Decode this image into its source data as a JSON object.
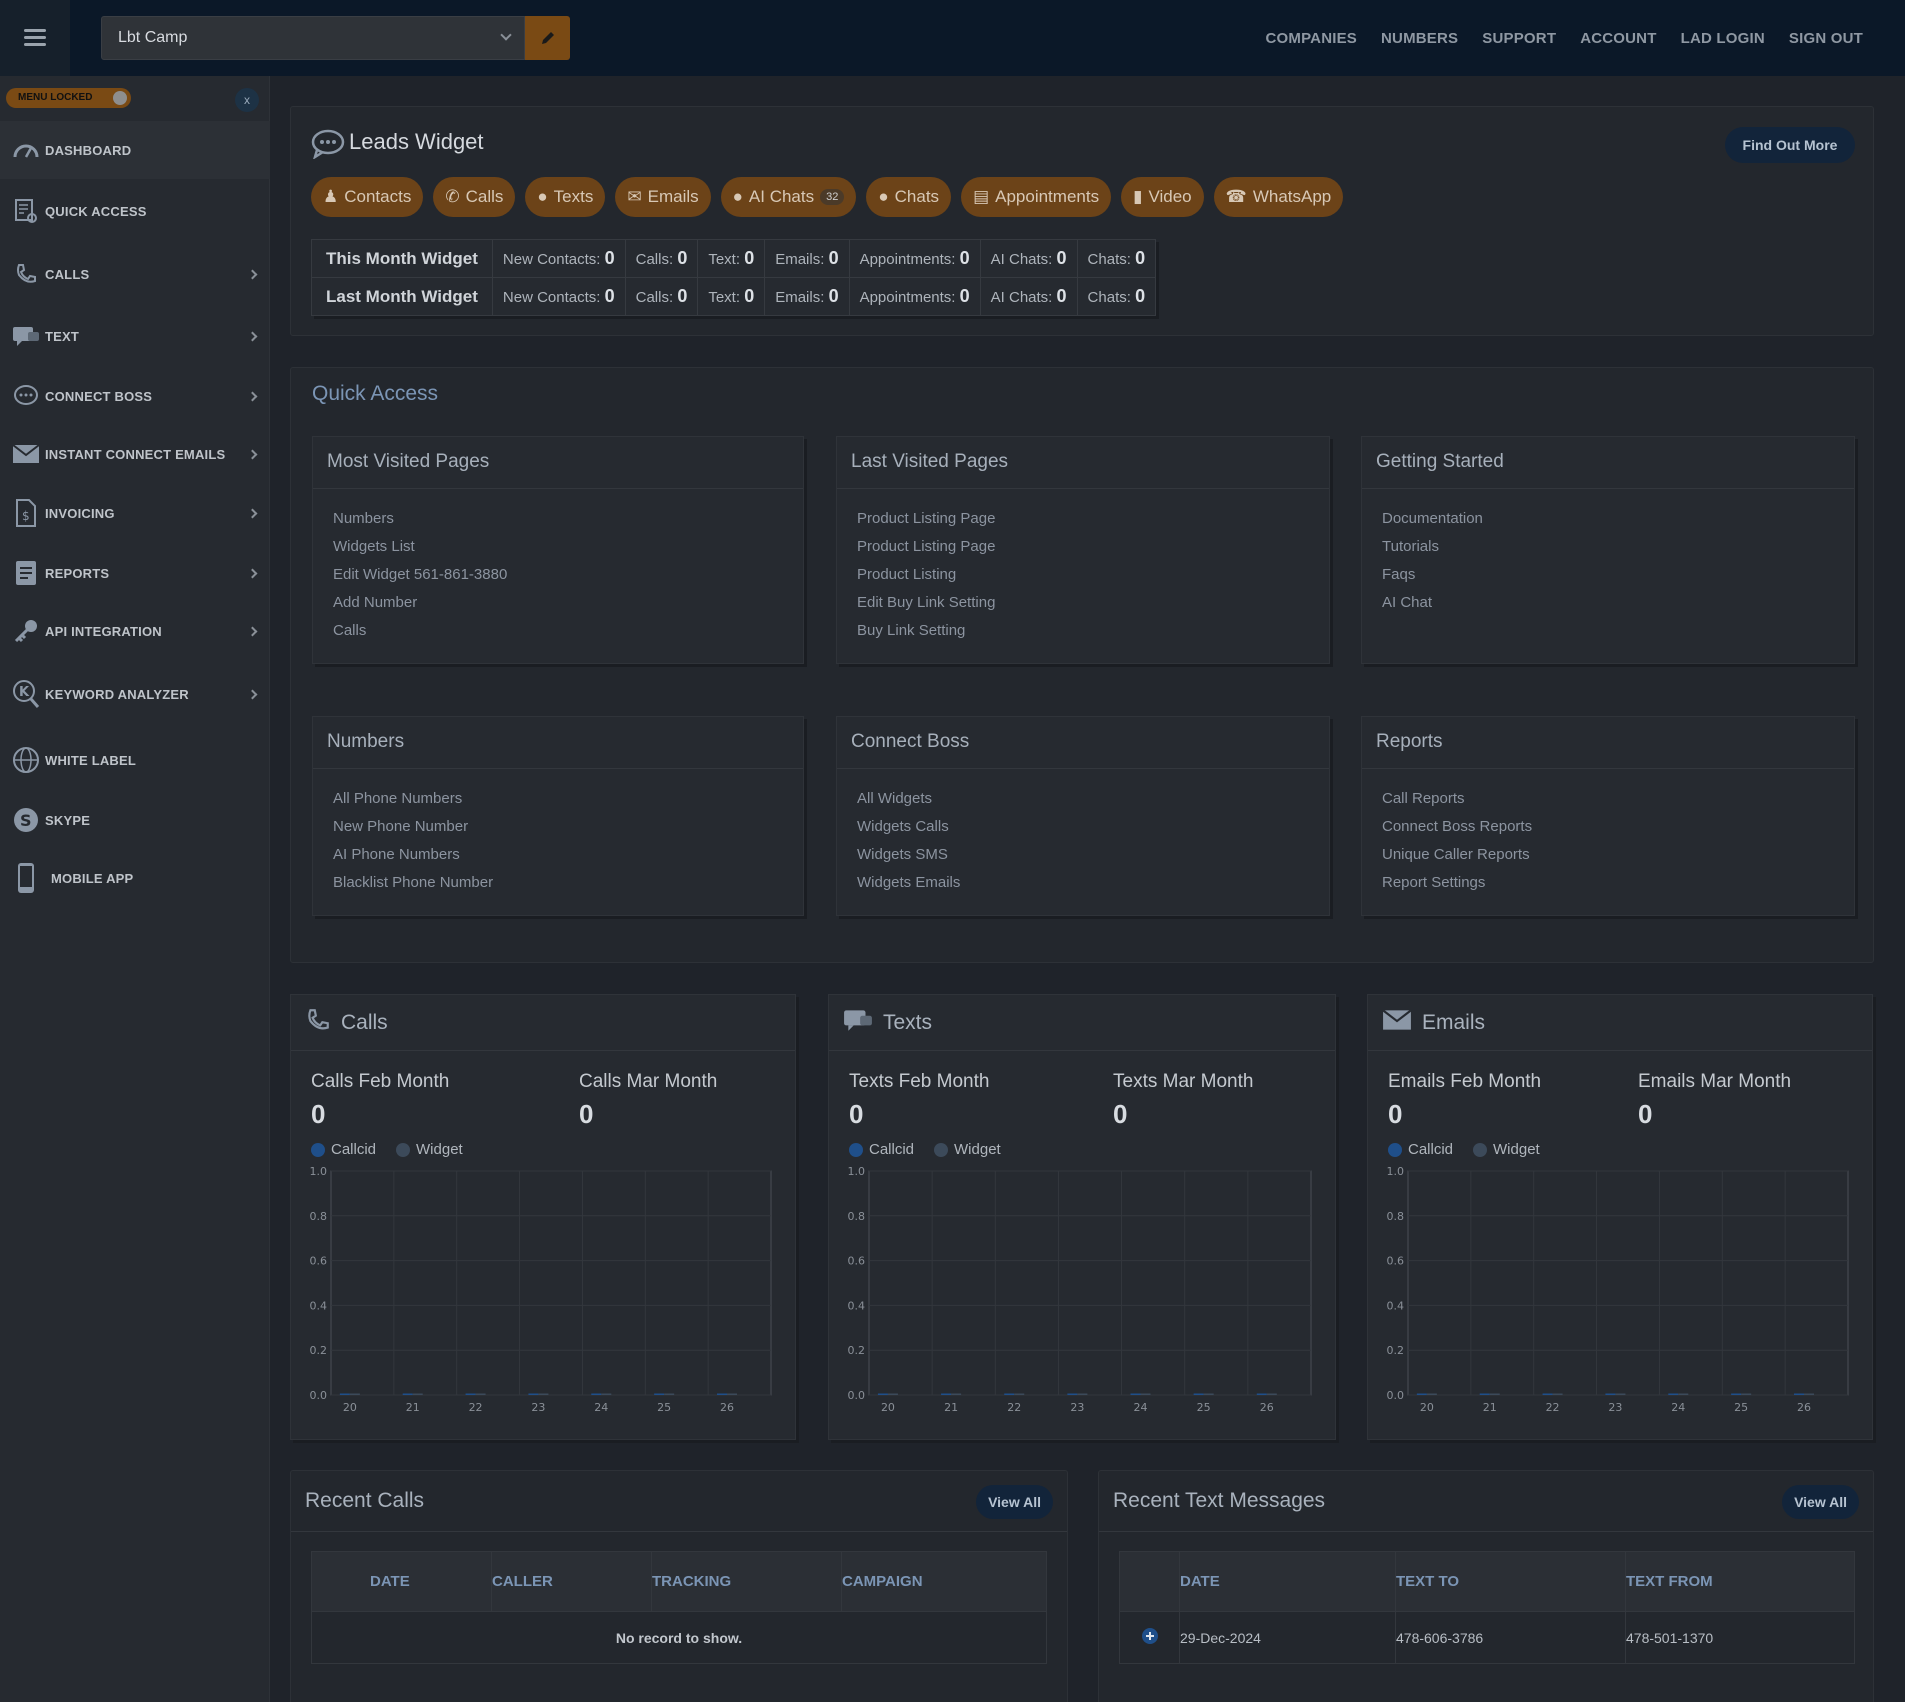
{
  "header": {
    "campaign": "Lbt Camp",
    "nav": [
      "COMPANIES",
      "NUMBERS",
      "SUPPORT",
      "ACCOUNT",
      "LAD LOGIN",
      "SIGN OUT"
    ]
  },
  "sidebar": {
    "menu_locked": "MENU LOCKED",
    "close": "x",
    "items": [
      {
        "label": "DASHBOARD",
        "icon": "dashboard-icon"
      },
      {
        "label": "QUICK ACCESS",
        "icon": "quick-access-icon"
      },
      {
        "label": "CALLS",
        "icon": "phone-icon"
      },
      {
        "label": "TEXT",
        "icon": "chat-icon"
      },
      {
        "label": "CONNECT BOSS",
        "icon": "speech-bubble-icon"
      },
      {
        "label": "INSTANT CONNECT EMAILS",
        "icon": "envelope-icon"
      },
      {
        "label": "INVOICING",
        "icon": "invoice-icon"
      },
      {
        "label": "REPORTS",
        "icon": "report-icon"
      },
      {
        "label": "API INTEGRATION",
        "icon": "key-icon"
      },
      {
        "label": "KEYWORD ANALYZER",
        "icon": "keyword-search-icon"
      },
      {
        "label": "WHITE LABEL",
        "icon": "globe-icon"
      },
      {
        "label": "SKYPE",
        "icon": "skype-icon"
      },
      {
        "label": "MOBILE APP",
        "icon": "mobile-icon"
      }
    ]
  },
  "leads": {
    "title": "Leads Widget",
    "find_out_more": "Find Out More",
    "pills": [
      {
        "label": "Contacts",
        "icon": "user-icon"
      },
      {
        "label": "Calls",
        "icon": "phone-icon"
      },
      {
        "label": "Texts",
        "icon": "comment-icon"
      },
      {
        "label": "Emails",
        "icon": "envelope-icon"
      },
      {
        "label": "AI Chats",
        "icon": "comment-icon",
        "badge": "32"
      },
      {
        "label": "Chats",
        "icon": "comment-icon"
      },
      {
        "label": "Appointments",
        "icon": "calendar-icon"
      },
      {
        "label": "Video",
        "icon": "video-icon"
      },
      {
        "label": "WhatsApp",
        "icon": "whatsapp-icon"
      }
    ],
    "rows": [
      {
        "title": "This Month Widget",
        "cells": [
          {
            "label": "New Contacts:",
            "value": "0"
          },
          {
            "label": "Calls:",
            "value": "0"
          },
          {
            "label": "Text:",
            "value": "0"
          },
          {
            "label": "Emails:",
            "value": "0"
          },
          {
            "label": "Appointments:",
            "value": "0"
          },
          {
            "label": "AI Chats:",
            "value": "0"
          },
          {
            "label": "Chats:",
            "value": "0"
          }
        ]
      },
      {
        "title": "Last Month Widget",
        "cells": [
          {
            "label": "New Contacts:",
            "value": "0"
          },
          {
            "label": "Calls:",
            "value": "0"
          },
          {
            "label": "Text:",
            "value": "0"
          },
          {
            "label": "Emails:",
            "value": "0"
          },
          {
            "label": "Appointments:",
            "value": "0"
          },
          {
            "label": "AI Chats:",
            "value": "0"
          },
          {
            "label": "Chats:",
            "value": "0"
          }
        ]
      }
    ]
  },
  "quick_access": {
    "title": "Quick Access",
    "cards": [
      {
        "title": "Most Visited Pages",
        "links": [
          "Numbers",
          "Widgets List",
          "Edit Widget 561-861-3880",
          "Add Number",
          "Calls"
        ]
      },
      {
        "title": "Last Visited Pages",
        "links": [
          "Product Listing Page",
          "Product Listing Page",
          "Product Listing",
          "Edit Buy Link Setting",
          "Buy Link Setting"
        ]
      },
      {
        "title": "Getting Started",
        "links": [
          "Documentation",
          "Tutorials",
          "Faqs",
          "AI Chat"
        ]
      },
      {
        "title": "Numbers",
        "links": [
          "All Phone Numbers",
          "New Phone Number",
          "AI Phone Numbers",
          "Blacklist Phone Number"
        ]
      },
      {
        "title": "Connect Boss",
        "links": [
          "All Widgets",
          "Widgets Calls",
          "Widgets SMS",
          "Widgets Emails"
        ]
      },
      {
        "title": "Reports",
        "links": [
          "Call Reports",
          "Connect Boss Reports",
          "Unique Caller Reports",
          "Report Settings"
        ]
      }
    ]
  },
  "stats_cards": [
    {
      "title": "Calls",
      "icon": "phone-icon",
      "m1_label": "Calls Feb Month",
      "m1_value": "0",
      "m2_label": "Calls Mar Month",
      "m2_value": "0",
      "legend": [
        "Callcid",
        "Widget"
      ]
    },
    {
      "title": "Texts",
      "icon": "chat-icon",
      "m1_label": "Texts Feb Month",
      "m1_value": "0",
      "m2_label": "Texts Mar Month",
      "m2_value": "0",
      "legend": [
        "Callcid",
        "Widget"
      ]
    },
    {
      "title": "Emails",
      "icon": "envelope-icon",
      "m1_label": "Emails Feb Month",
      "m1_value": "0",
      "m2_label": "Emails Mar Month",
      "m2_value": "0",
      "legend": [
        "Callcid",
        "Widget"
      ]
    }
  ],
  "chart_data": [
    {
      "type": "bar",
      "title": "",
      "categories": [
        "20",
        "21",
        "22",
        "23",
        "24",
        "25",
        "26"
      ],
      "series": [
        {
          "name": "Callcid",
          "values": [
            0,
            0,
            0,
            0,
            0,
            0,
            0
          ]
        },
        {
          "name": "Widget",
          "values": [
            0,
            0,
            0,
            0,
            0,
            0,
            0
          ]
        }
      ],
      "yticks": [
        "0.0",
        "0.2",
        "0.4",
        "0.6",
        "0.8",
        "1.0"
      ],
      "ylim": [
        0,
        1
      ],
      "grid": true
    },
    {
      "type": "bar",
      "title": "",
      "categories": [
        "20",
        "21",
        "22",
        "23",
        "24",
        "25",
        "26"
      ],
      "series": [
        {
          "name": "Callcid",
          "values": [
            0,
            0,
            0,
            0,
            0,
            0,
            0
          ]
        },
        {
          "name": "Widget",
          "values": [
            0,
            0,
            0,
            0,
            0,
            0,
            0
          ]
        }
      ],
      "yticks": [
        "0.0",
        "0.2",
        "0.4",
        "0.6",
        "0.8",
        "1.0"
      ],
      "ylim": [
        0,
        1
      ],
      "grid": true
    },
    {
      "type": "bar",
      "title": "",
      "categories": [
        "20",
        "21",
        "22",
        "23",
        "24",
        "25",
        "26"
      ],
      "series": [
        {
          "name": "Callcid",
          "values": [
            0,
            0,
            0,
            0,
            0,
            0,
            0
          ]
        },
        {
          "name": "Widget",
          "values": [
            0,
            0,
            0,
            0,
            0,
            0,
            0
          ]
        }
      ],
      "yticks": [
        "0.0",
        "0.2",
        "0.4",
        "0.6",
        "0.8",
        "1.0"
      ],
      "ylim": [
        0,
        1
      ],
      "grid": true
    }
  ],
  "colors": {
    "callcid": "#1f4f8a",
    "widget": "#3c4a5a",
    "accent": "#6c4318"
  },
  "recent_calls": {
    "title": "Recent Calls",
    "view_all": "View All",
    "columns": [
      "DATE",
      "CALLER",
      "TRACKING",
      "CAMPAIGN"
    ],
    "empty": "No record to show."
  },
  "recent_texts": {
    "title": "Recent Text Messages",
    "view_all": "View All",
    "columns": [
      "DATE",
      "TEXT TO",
      "TEXT FROM"
    ],
    "rows": [
      {
        "date": "29-Dec-2024",
        "to": "478-606-3786",
        "from": "478-501-1370"
      }
    ]
  }
}
